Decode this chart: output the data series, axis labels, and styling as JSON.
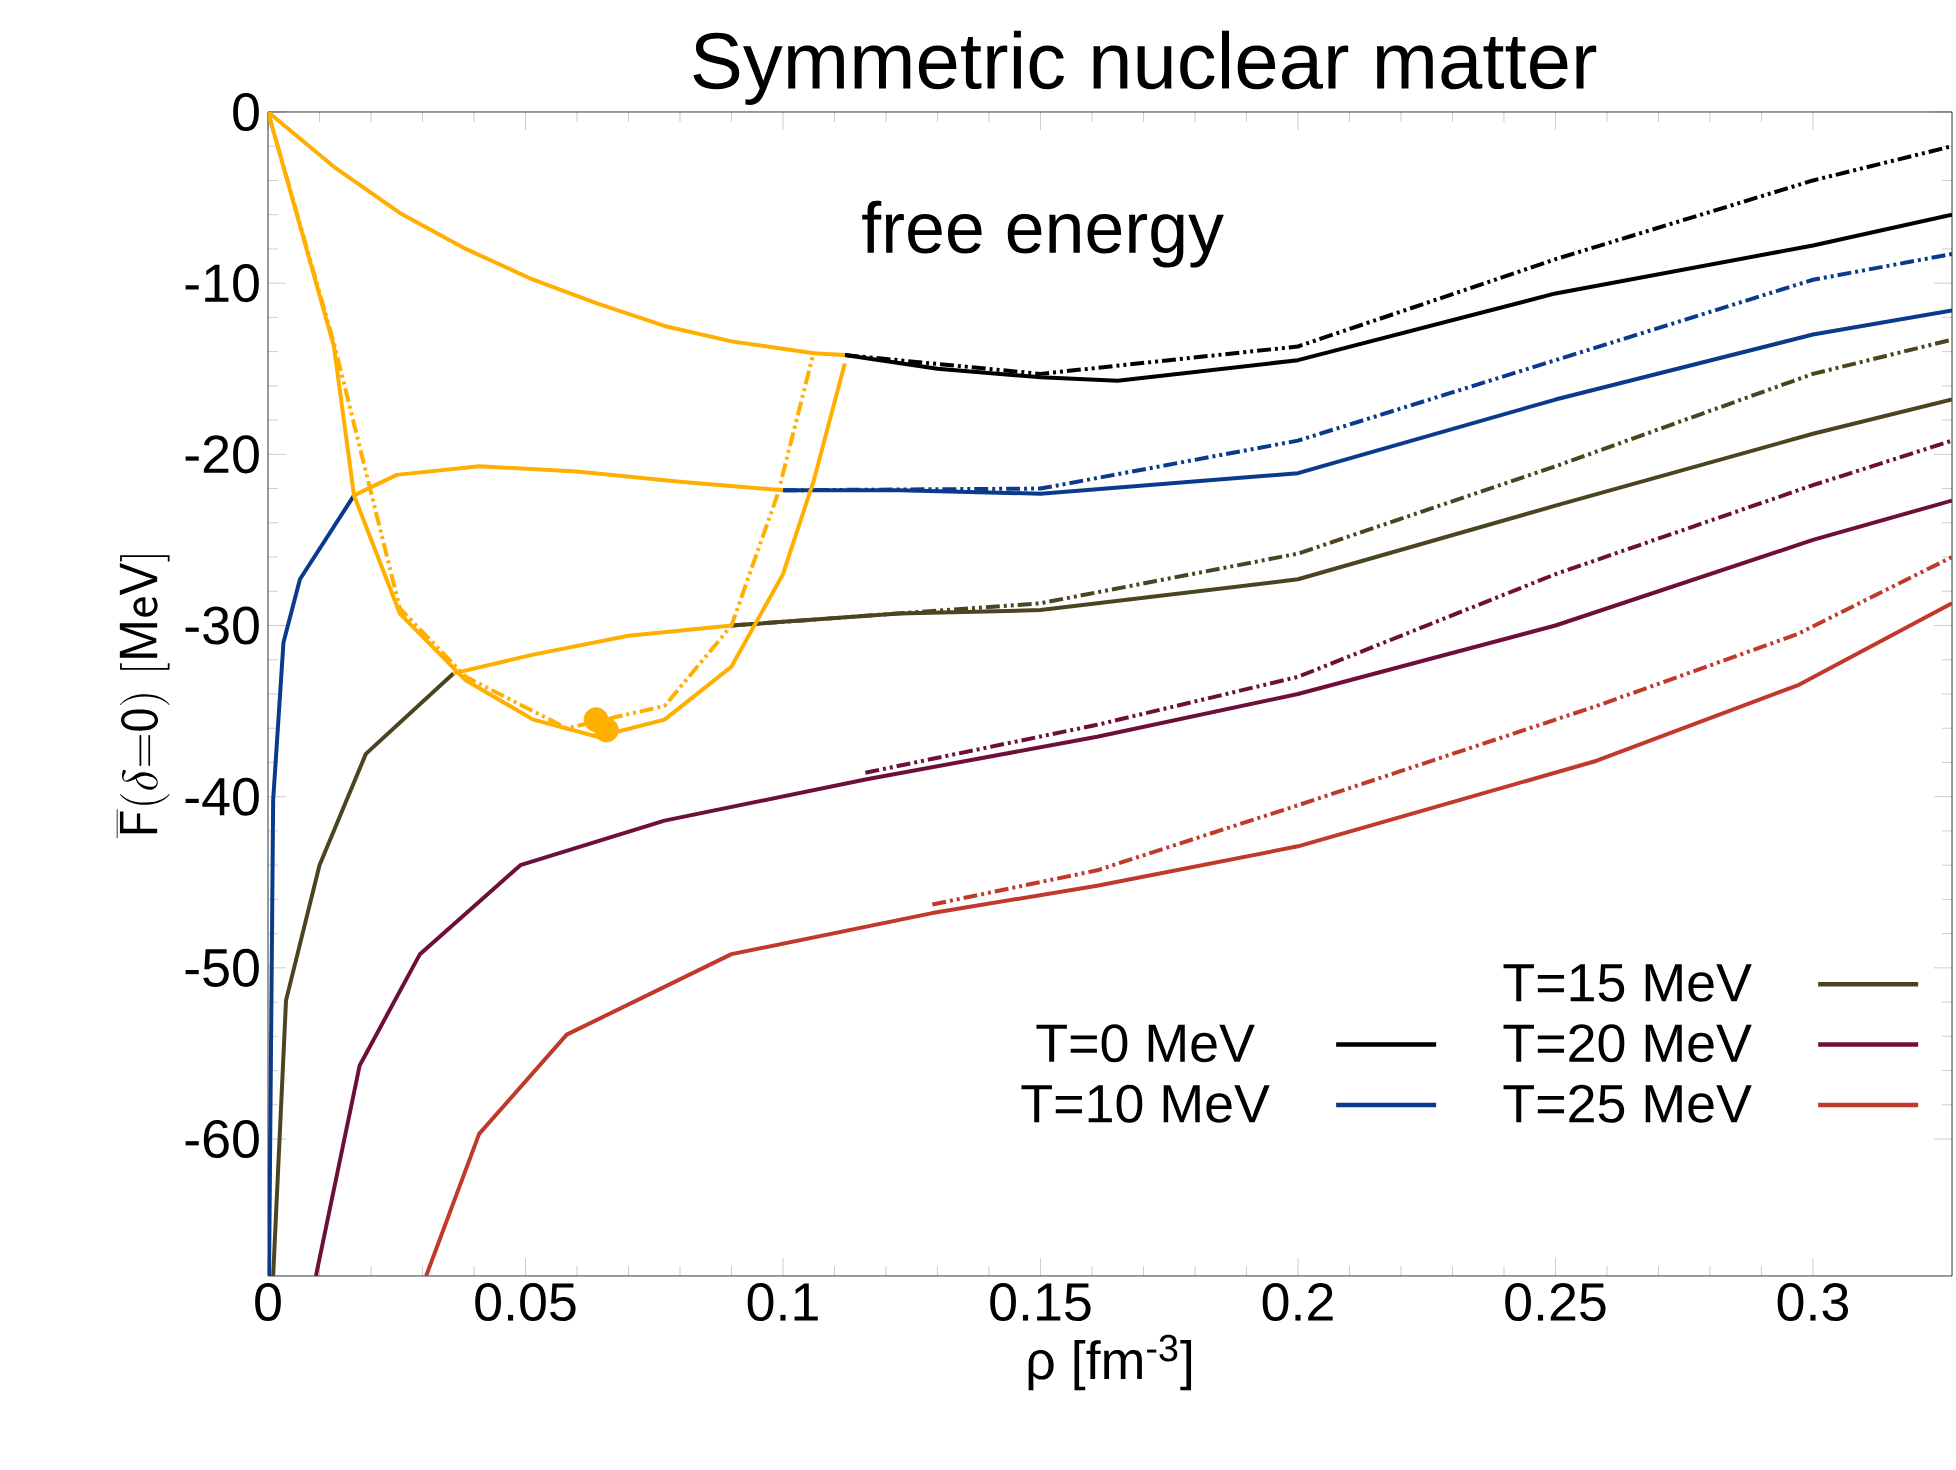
{
  "chart_data": {
    "type": "line",
    "title": "Symmetric nuclear matter",
    "xlabel": "ρ [fm$^{-3}$]",
    "ylabel": "\\overline{\\mathsf{F}}\\mathsf{(\\delta{=}0)\\ [MeV]}",
    "annotations": [
      "free energy"
    ],
    "xlim": [
      0,
      0.327
    ],
    "ylim": [
      -68,
      0
    ],
    "xticks": [
      0,
      0.05,
      0.1,
      0.15,
      0.2,
      0.25,
      0.3
    ],
    "yticks": [
      0,
      -10,
      -20,
      -30,
      -40,
      -50,
      -60
    ],
    "legend": "bottom right",
    "grid": false,
    "series": [
      {
        "name": "T=0 MeV",
        "color": "#000000",
        "line_style": "solid",
        "x": [
          0.112,
          0.13,
          0.15,
          0.165,
          0.2,
          0.25,
          0.3,
          0.327
        ],
        "values": [
          -14.2,
          -15.0,
          -15.5,
          -15.7,
          -14.5,
          -10.6,
          -7.8,
          -6.0
        ]
      },
      {
        "color": "#000000",
        "line_style": "dashed",
        "x": [
          0.112,
          0.15,
          0.2,
          0.25,
          0.3,
          0.327
        ],
        "values": [
          -14.2,
          -15.3,
          -13.7,
          -8.6,
          -4.0,
          -2.0
        ]
      },
      {
        "color": "#ffaf00",
        "line_style": "solid",
        "x": [
          0,
          0.0128,
          0.0256,
          0.0384,
          0.0515,
          0.064,
          0.077,
          0.09,
          0.106,
          0.112
        ],
        "values": [
          0,
          -3.2,
          -5.9,
          -8.0,
          -9.8,
          -11.2,
          -12.5,
          -13.4,
          -14.1,
          -14.2
        ]
      },
      {
        "name": "T=10 MeV",
        "color": "#0a3a8c",
        "line_style": "solid",
        "x": [
          0.0002,
          0.001,
          0.003,
          0.0062,
          0.0167,
          0.05,
          0.1,
          0.1225,
          0.15,
          0.2,
          0.25,
          0.3,
          0.327
        ],
        "values": [
          -68,
          -40.2,
          -31,
          -27.3,
          -22.4,
          null,
          -22.1,
          -22.1,
          -22.3,
          -21.1,
          -16.8,
          -13.0,
          -11.6
        ]
      },
      {
        "color": "#0a3a8c",
        "line_style": "dashed",
        "x": [
          0.1,
          0.15,
          0.2,
          0.25,
          0.3,
          0.327
        ],
        "values": [
          -22.1,
          -22.0,
          -19.2,
          -14.5,
          -9.8,
          -8.3
        ]
      },
      {
        "color": "#ffaf00",
        "line_style": "solid",
        "x": [
          0.0167,
          0.025,
          0.041,
          0.06,
          0.08,
          0.1
        ],
        "values": [
          -22.4,
          -21.2,
          -20.7,
          -21.0,
          -21.6,
          -22.1
        ]
      },
      {
        "name": "T=15 MeV",
        "color": "#4a4520",
        "line_style": "solid",
        "x": [
          0.001,
          0.0035,
          0.01,
          0.019,
          0.036,
          0.06,
          0.09,
          0.1225,
          0.15,
          0.2,
          0.25,
          0.3,
          0.327
        ],
        "values": [
          -68,
          -51.9,
          -44.0,
          -37.5,
          -32.8,
          null,
          -30.0,
          -29.3,
          -29.1,
          -27.3,
          -23.0,
          -18.8,
          -16.8
        ]
      },
      {
        "color": "#4a4520",
        "line_style": "dashed",
        "x": [
          0.09,
          0.15,
          0.2,
          0.25,
          0.3,
          0.327
        ],
        "values": [
          -30.0,
          -28.7,
          -25.8,
          -20.7,
          -15.3,
          -13.3
        ]
      },
      {
        "color": "#ffaf00",
        "line_style": "solid",
        "x": [
          0.036,
          0.0515,
          0.07,
          0.09
        ],
        "values": [
          -32.8,
          -31.7,
          -30.6,
          -30.0
        ]
      },
      {
        "name": "T=20 MeV",
        "color": "#6e0f3a",
        "line_style": "solid",
        "x": [
          0.0093,
          0.0178,
          0.0295,
          0.049,
          0.077,
          0.116,
          0.161,
          0.2,
          0.25,
          0.3,
          0.327
        ],
        "values": [
          -68,
          -55.7,
          -49.2,
          -44.0,
          -41.4,
          -39.0,
          -36.5,
          -34.0,
          -30.0,
          -25.0,
          -22.7
        ]
      },
      {
        "color": "#6e0f3a",
        "line_style": "dashed",
        "x": [
          0.116,
          0.161,
          0.2,
          0.25,
          0.3,
          0.327
        ],
        "values": [
          -38.6,
          -35.8,
          -33.0,
          -27.0,
          -21.8,
          -19.2
        ]
      },
      {
        "name": "T=25 MeV",
        "color": "#c0392b",
        "line_style": "solid",
        "x": [
          0.0307,
          0.041,
          0.058,
          0.09,
          0.129,
          0.161,
          0.2,
          0.258,
          0.297,
          0.327
        ],
        "values": [
          -68,
          -59.7,
          -53.9,
          -49.2,
          -46.8,
          -45.2,
          -42.9,
          -37.9,
          -33.5,
          -28.7
        ]
      },
      {
        "color": "#c0392b",
        "line_style": "dashed",
        "x": [
          0.129,
          0.161,
          0.2,
          0.258,
          0.297,
          0.327
        ],
        "values": [
          -46.3,
          -44.3,
          -40.5,
          -34.7,
          -30.5,
          -26.0
        ]
      },
      {
        "color": "#ffaf00",
        "line_style": "solid",
        "x": [
          0,
          0.0128,
          0.0167,
          0.0256,
          0.0384,
          0.0515,
          0.064,
          0.077,
          0.09,
          0.1,
          0.106,
          0.112
        ],
        "values": [
          0,
          -13.7,
          -22.4,
          -29.3,
          -33.2,
          -35.5,
          -36.5,
          -35.5,
          -32.4,
          -27.0,
          -21.5,
          -14.7
        ]
      },
      {
        "color": "#ffaf00",
        "line_style": "dashed",
        "x": [
          0,
          0.0128,
          0.0256,
          0.0384,
          0.058,
          0.077,
          0.09,
          0.099,
          0.106
        ],
        "values": [
          0,
          -13.5,
          -29.0,
          -33.0,
          -36.0,
          -34.7,
          -30.0,
          -22.3,
          -14.0
        ]
      },
      {
        "type": "scatter",
        "color": "#ffaf00",
        "marker": "circle",
        "x": [
          0.0637,
          0.0657
        ],
        "values": [
          -35.5,
          -36.1
        ]
      }
    ]
  }
}
